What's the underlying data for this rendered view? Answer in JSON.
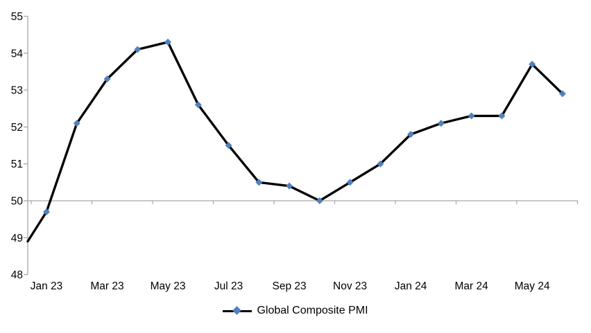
{
  "chart_data": {
    "type": "line",
    "title": "",
    "categories": [
      "Jan 23",
      "Feb 23",
      "Mar 23",
      "Apr 23",
      "May 23",
      "Jun 23",
      "Jul 23",
      "Aug 23",
      "Sep 23",
      "Oct 23",
      "Nov 23",
      "Dec 23",
      "Jan 24",
      "Feb 24",
      "Mar 24",
      "Apr 24",
      "May 24",
      "Jun 24"
    ],
    "series": [
      {
        "name": "Global Composite PMI",
        "values": [
          49.7,
          52.1,
          53.3,
          54.1,
          54.3,
          52.6,
          51.5,
          50.5,
          50.4,
          50.0,
          50.5,
          51.0,
          51.8,
          52.1,
          52.3,
          52.3,
          53.7,
          52.9
        ],
        "marker": "diamond",
        "marker_color": "#4F81BD",
        "line_color": "#000000"
      }
    ],
    "clipped_lead_in": {
      "value_at_axis": 48.9,
      "note": "series line enters the plot at the left axis below the first labeled point"
    },
    "x_tick_labels": [
      "Jan 23",
      "Mar 23",
      "May 23",
      "Jul 23",
      "Sep 23",
      "Nov 23",
      "Jan 24",
      "Mar 24",
      "May 24"
    ],
    "y_ticks": [
      48,
      49,
      50,
      51,
      52,
      53,
      54,
      55
    ],
    "ylim": [
      48,
      55
    ],
    "reference_line": 50,
    "grid": "single horizontal axis line at 50 with tick marks; no other gridlines",
    "legend": {
      "label": "Global Composite PMI",
      "position": "bottom-center"
    },
    "axis_color": "#A6A6A6",
    "text_color": "#000000",
    "background": "#FFFFFF"
  }
}
